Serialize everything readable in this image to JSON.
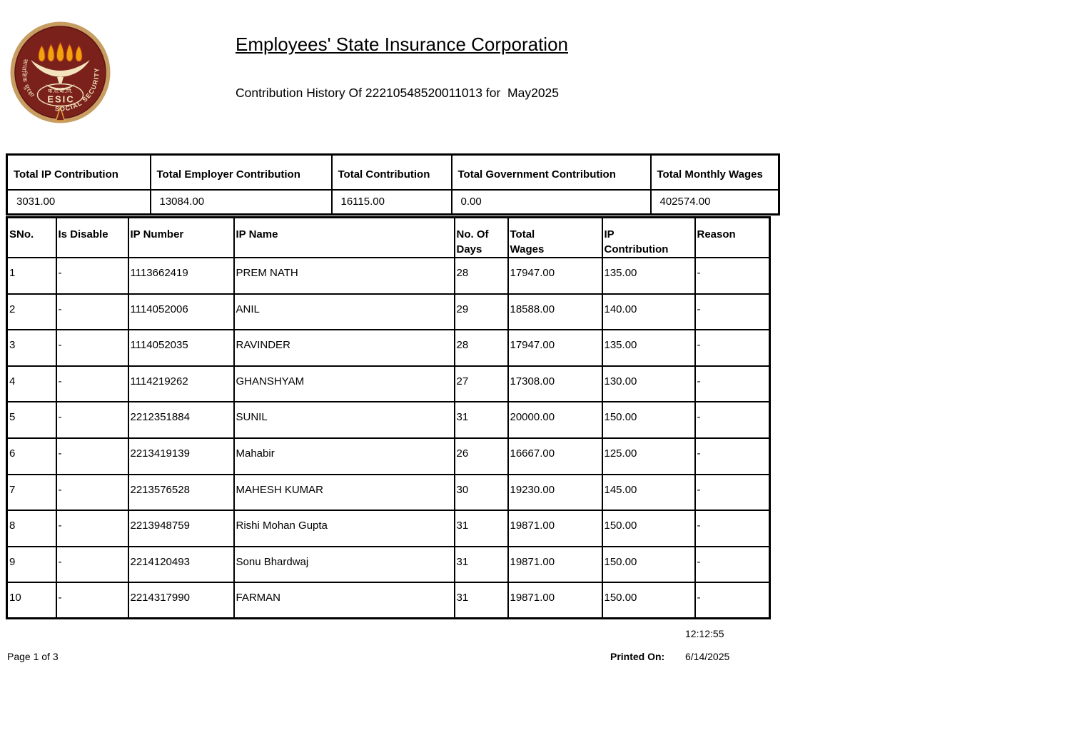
{
  "page": {
    "title": "Employees' State Insurance Corporation",
    "subtitle": "Contribution History Of 22210548520011013 for  May2025"
  },
  "logo": {
    "acronym": "ESIC",
    "hindi_abbr": "क.रा.बी.नि.",
    "left_arc_text": "सामाजिक सुरक्षा",
    "right_arc_text": "SOCIAL SECURITY",
    "colors": {
      "ring_tan": "#C89D62",
      "maroon": "#7A211C",
      "maroon_dark": "#5C1410",
      "cream": "#F3E4BD",
      "flame_gold": "#F0A30A",
      "flame_outline": "#C03A1A",
      "stand_gold": "#DFA13C"
    }
  },
  "summary_table": {
    "columns": [
      "Total IP Contribution",
      "Total Employer Contribution",
      "Total Contribution",
      "Total Government Contribution",
      "Total Monthly Wages"
    ],
    "values": [
      "3031.00",
      "13084.00",
      "16115.00",
      "0.00",
      "402574.00"
    ]
  },
  "detail_table": {
    "columns": [
      "SNo.",
      "Is Disable",
      "IP Number",
      "IP Name",
      "No. Of\nDays",
      "Total\nWages",
      "IP\nContribution",
      "Reason"
    ],
    "rows": [
      [
        "1",
        "-",
        "1113662419",
        "PREM NATH",
        "28",
        "17947.00",
        "135.00",
        "-"
      ],
      [
        "2",
        "-",
        "1114052006",
        "ANIL",
        "29",
        "18588.00",
        "140.00",
        "-"
      ],
      [
        "3",
        "-",
        "1114052035",
        "RAVINDER",
        "28",
        "17947.00",
        "135.00",
        "-"
      ],
      [
        "4",
        "-",
        "1114219262",
        "GHANSHYAM",
        "27",
        "17308.00",
        "130.00",
        "-"
      ],
      [
        "5",
        "-",
        "2212351884",
        "SUNIL",
        "31",
        "20000.00",
        "150.00",
        "-"
      ],
      [
        "6",
        "-",
        "2213419139",
        "Mahabir",
        "26",
        "16667.00",
        "125.00",
        "-"
      ],
      [
        "7",
        "-",
        "2213576528",
        "MAHESH KUMAR",
        "30",
        "19230.00",
        "145.00",
        "-"
      ],
      [
        "8",
        "-",
        "2213948759",
        "Rishi Mohan Gupta",
        "31",
        "19871.00",
        "150.00",
        "-"
      ],
      [
        "9",
        "-",
        "2214120493",
        "Sonu Bhardwaj",
        "31",
        "19871.00",
        "150.00",
        "-"
      ],
      [
        "10",
        "-",
        "2214317990",
        "FARMAN",
        "31",
        "19871.00",
        "150.00",
        "-"
      ]
    ]
  },
  "footer": {
    "time": "12:12:55",
    "page_label": "Page 1 of 3",
    "printed_on_label": "Printed On:",
    "printed_on_date": "6/14/2025"
  }
}
